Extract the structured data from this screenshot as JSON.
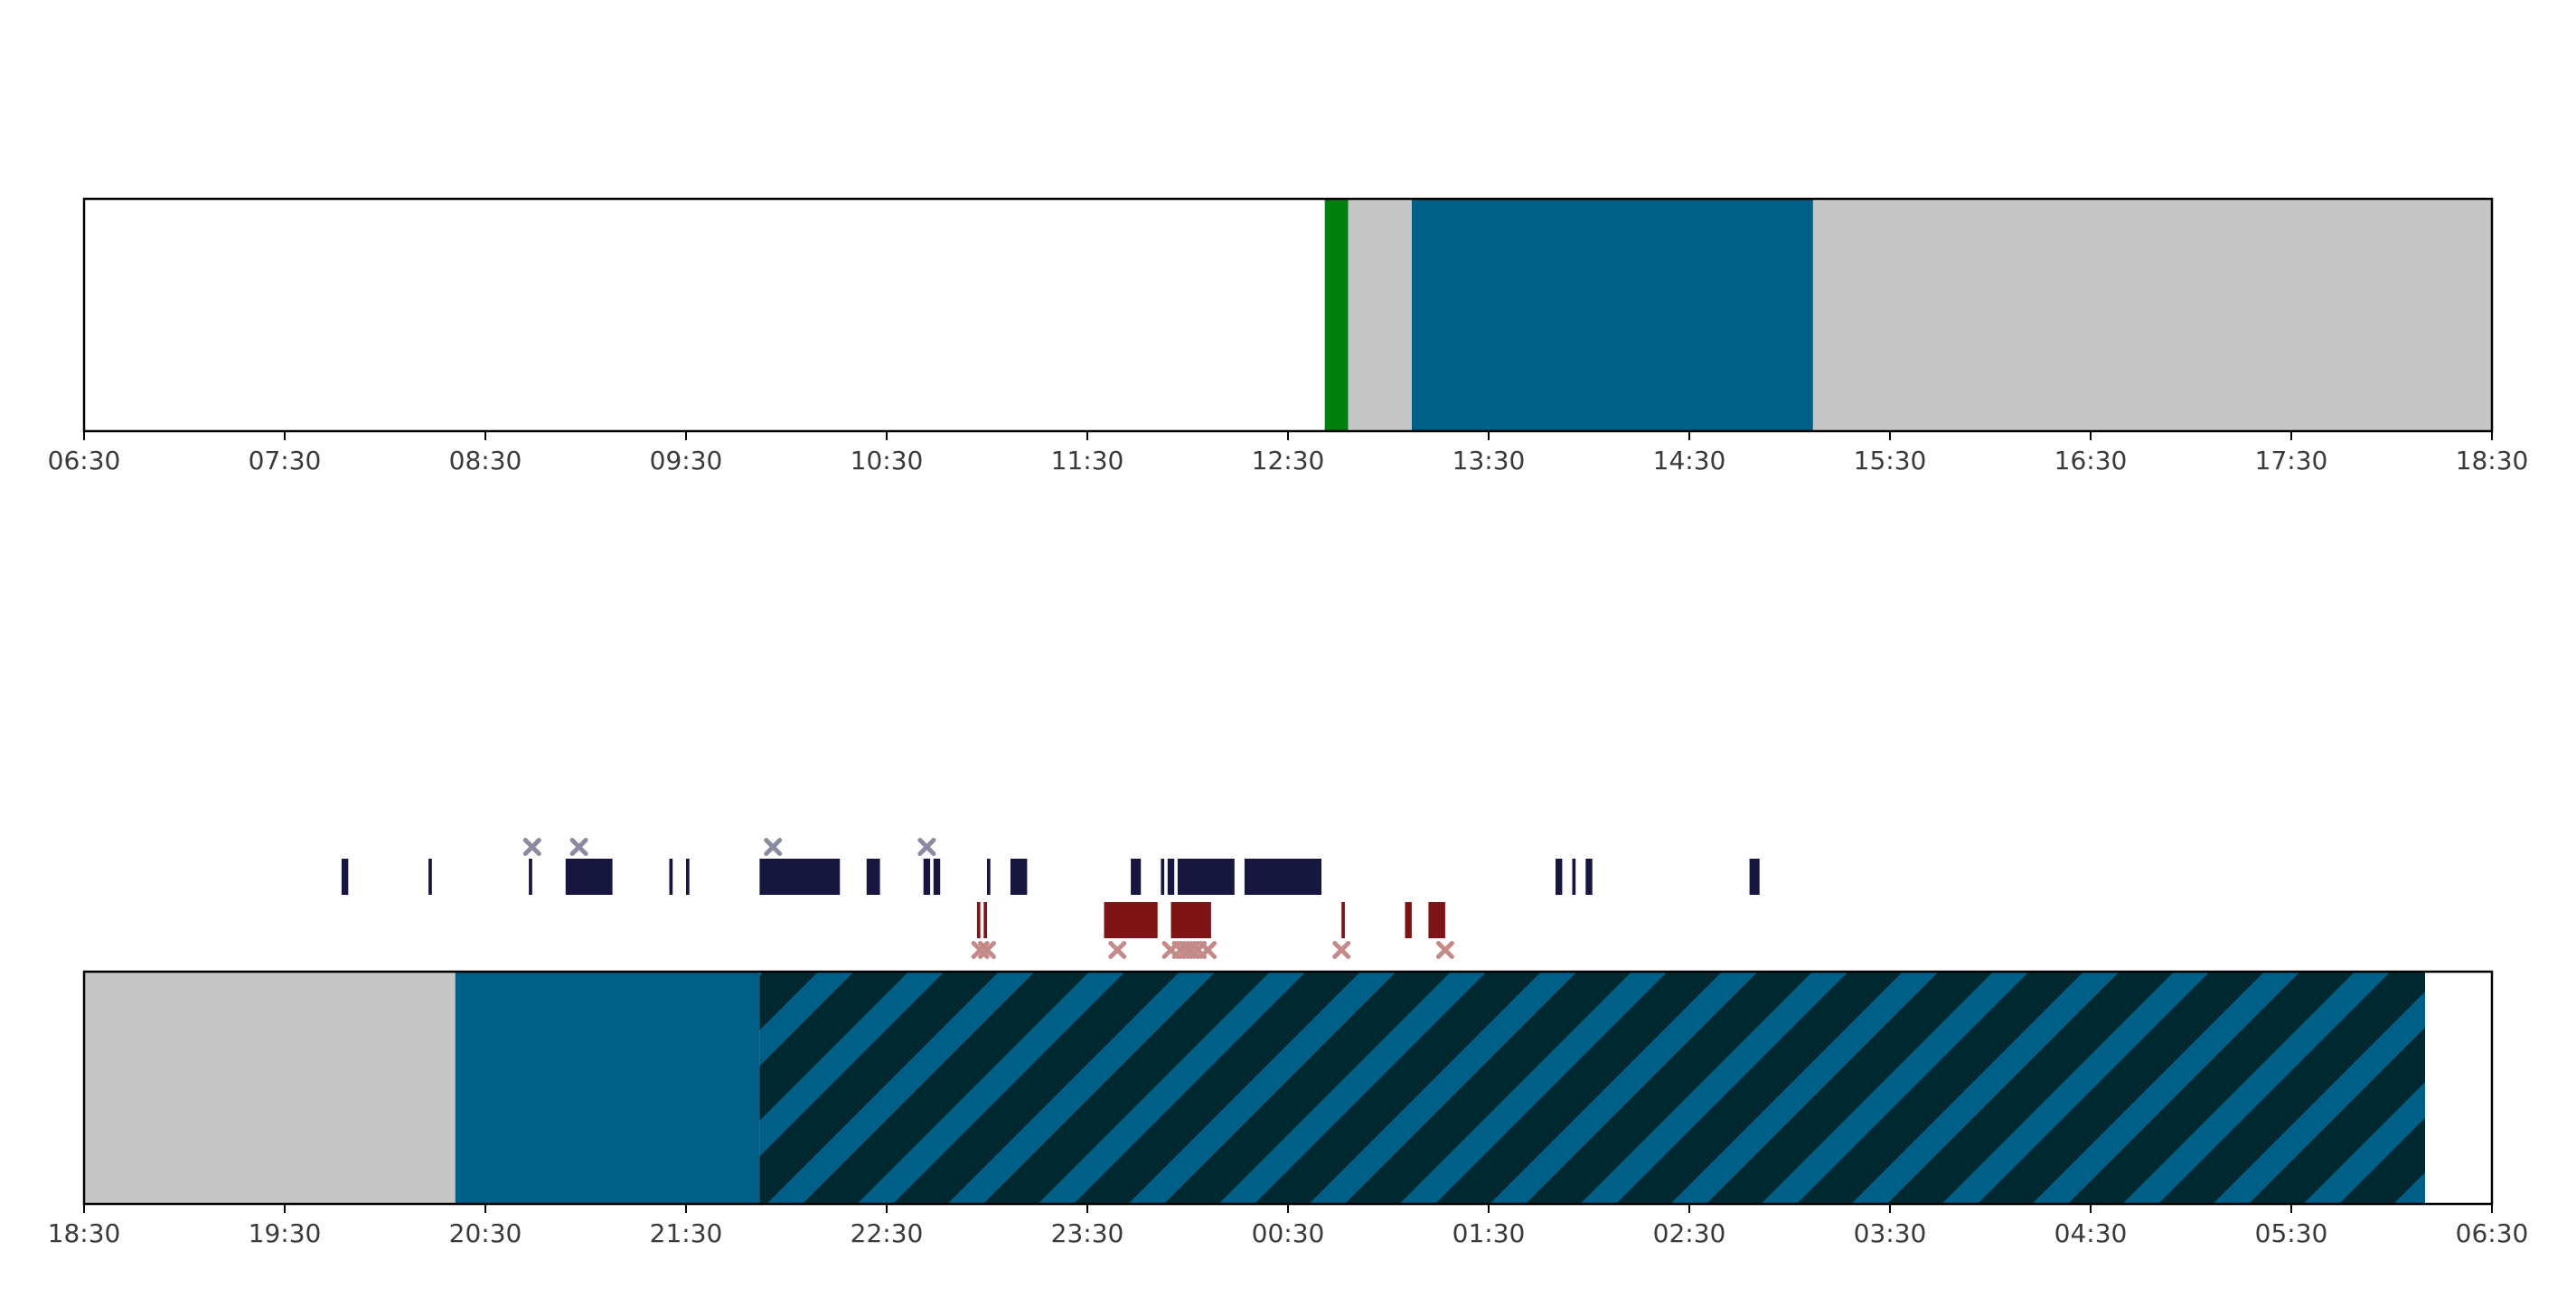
{
  "chart_data": [
    {
      "type": "timeline",
      "x_range": [
        "06:30",
        "18:30"
      ],
      "x_ticks": [
        "06:30",
        "07:30",
        "08:30",
        "09:30",
        "10:30",
        "11:30",
        "12:30",
        "13:30",
        "14:30",
        "15:30",
        "16:30",
        "17:30",
        "18:30"
      ],
      "segments": [
        {
          "start": "12:41",
          "end": "12:48",
          "state": "green",
          "color": "#007f0e"
        },
        {
          "start": "12:48",
          "end": "13:07",
          "state": "gray",
          "color": "#c6c6c6"
        },
        {
          "start": "13:07",
          "end": "15:07",
          "state": "blue",
          "color": "#005f87"
        },
        {
          "start": "15:07",
          "end": "18:30",
          "state": "gray",
          "color": "#c6c6c6"
        }
      ],
      "grid": false
    },
    {
      "type": "timeline",
      "x_range": [
        "18:30",
        "06:30"
      ],
      "x_ticks": [
        "18:30",
        "19:30",
        "20:30",
        "21:30",
        "22:30",
        "23:30",
        "00:30",
        "01:30",
        "02:30",
        "03:30",
        "04:30",
        "05:30",
        "06:30"
      ],
      "segments": [
        {
          "start": "18:30",
          "end": "20:21",
          "state": "gray",
          "color": "#c6c6c6"
        },
        {
          "start": "20:21",
          "end": "21:52",
          "state": "blue",
          "color": "#005f87"
        },
        {
          "start": "21:52",
          "end": "06:10",
          "state": "hatched",
          "color": "#002830",
          "stripe_color": "#005f87"
        }
      ],
      "upper_events": {
        "color": "#16163f",
        "bars": [
          [
            "19:47",
            "19:49"
          ],
          [
            "20:13",
            "20:14"
          ],
          [
            "20:43",
            "20:44"
          ],
          [
            "20:54",
            "21:08"
          ],
          [
            "21:25",
            "21:26"
          ],
          [
            "21:30",
            "21:31"
          ],
          [
            "21:52",
            "22:16"
          ],
          [
            "22:24",
            "22:28"
          ],
          [
            "22:41",
            "22:43"
          ],
          [
            "22:44",
            "22:46"
          ],
          [
            "23:00",
            "23:01"
          ],
          [
            "23:07",
            "23:12"
          ],
          [
            "23:43",
            "23:46"
          ],
          [
            "23:52",
            "23:53"
          ],
          [
            "23:54",
            "23:56"
          ],
          [
            "23:57",
            "00:14"
          ],
          [
            "00:17",
            "00:40"
          ],
          [
            "01:50",
            "01:52"
          ],
          [
            "01:55",
            "01:56"
          ],
          [
            "01:59",
            "02:01"
          ],
          [
            "02:48",
            "02:51"
          ]
        ],
        "markers": [
          "20:44",
          "20:58",
          "21:56",
          "22:42"
        ],
        "marker_color": "#8a8aa0"
      },
      "lower_events": {
        "color": "#7f1416",
        "bars": [
          [
            "22:57",
            "22:58"
          ],
          [
            "22:59",
            "23:00"
          ],
          [
            "23:35",
            "23:51"
          ],
          [
            "23:55",
            "24:07"
          ],
          [
            "00:46",
            "00:47"
          ],
          [
            "01:05",
            "01:07"
          ],
          [
            "01:12",
            "01:17"
          ]
        ],
        "markers": [
          "22:58",
          "23:00",
          "23:39",
          "23:55",
          "23:58",
          "00:00",
          "00:01",
          "00:03",
          "00:06",
          "00:46",
          "01:17"
        ],
        "marker_color": "#c48a8a"
      },
      "grid": false
    }
  ]
}
